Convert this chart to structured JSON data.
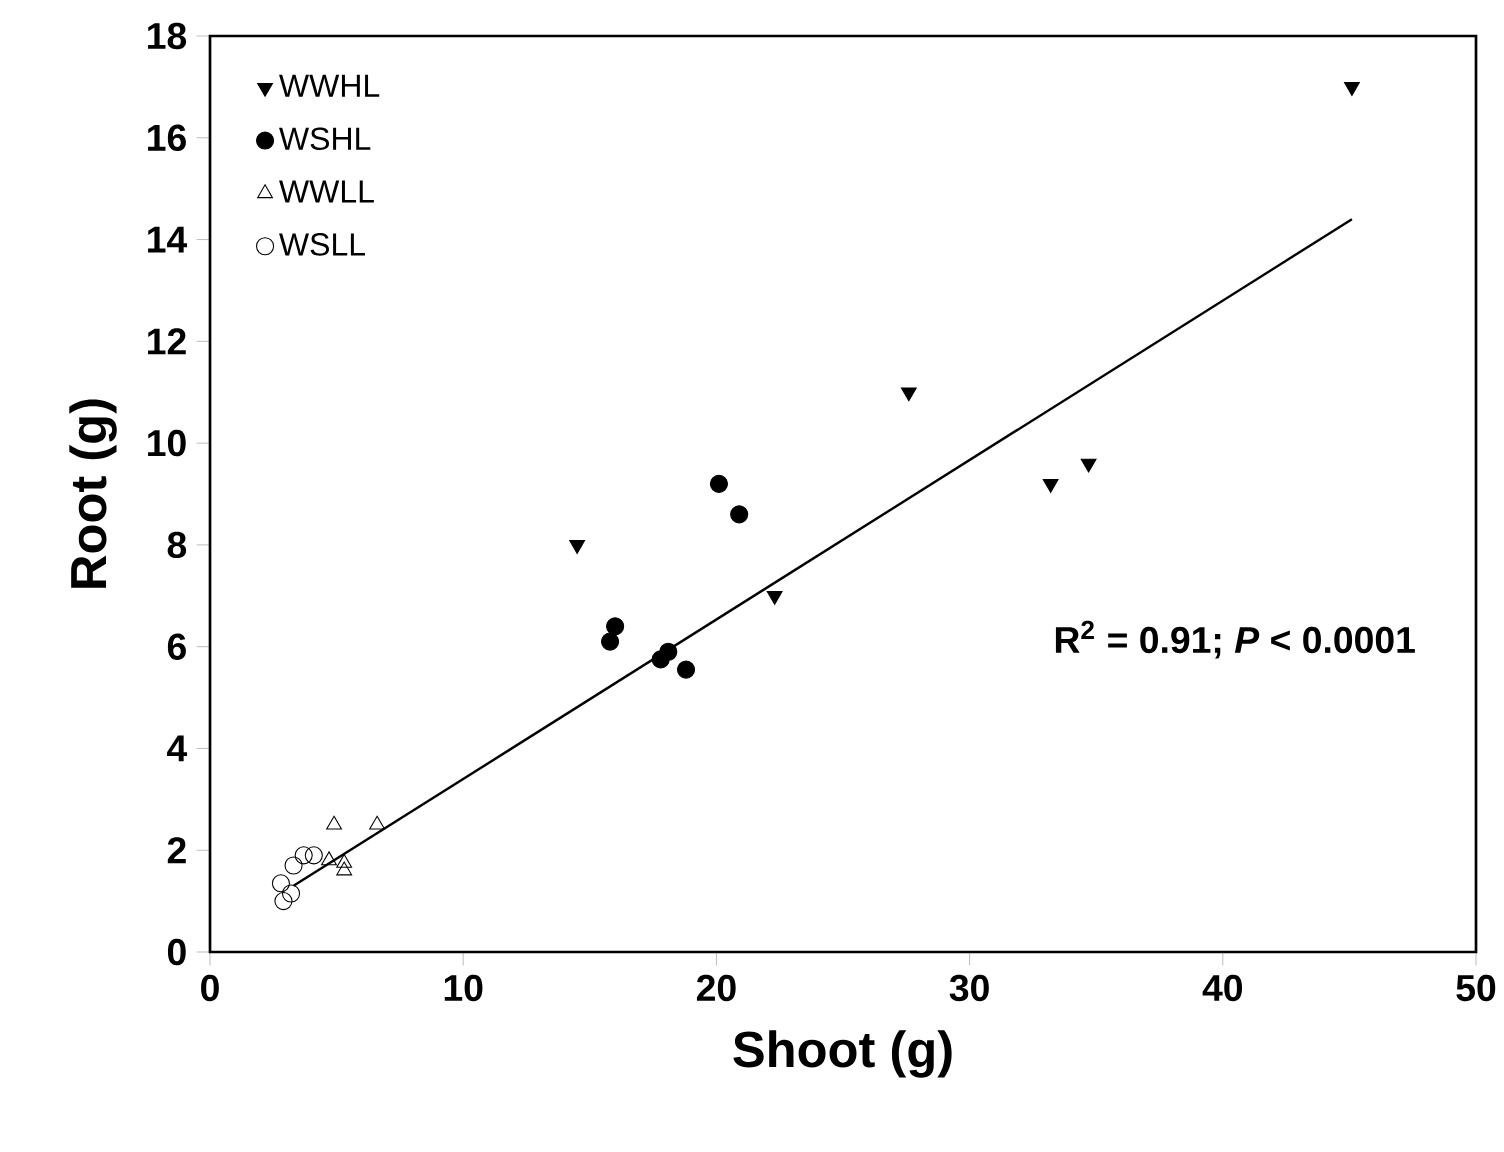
{
  "chart_data": {
    "type": "scatter",
    "xlabel": "Shoot (g)",
    "ylabel": "Root (g)",
    "xlim": [
      0,
      50
    ],
    "ylim": [
      0,
      18
    ],
    "xticks": [
      0,
      10,
      20,
      30,
      40,
      50
    ],
    "yticks": [
      0,
      2,
      4,
      6,
      8,
      10,
      12,
      14,
      16,
      18
    ],
    "grid": false,
    "legend": "top left",
    "annotations": [
      {
        "text": "R$^{2}$ = 0.91; *P* < 0.0001"
      }
    ],
    "series": [
      {
        "name": "WWHL",
        "color": "#000000",
        "marker": "triangle-down",
        "x": [
          14.5,
          22.3,
          27.6,
          33.2,
          34.7,
          45.1
        ],
        "values": [
          8.0,
          7.0,
          11.0,
          9.2,
          9.6,
          17.0
        ]
      },
      {
        "name": "WSHL",
        "color": "#000000",
        "marker": "circle",
        "x": [
          20.1,
          20.9,
          15.8,
          16.0,
          17.8,
          18.1,
          18.8
        ],
        "values": [
          9.2,
          8.6,
          6.1,
          6.4,
          5.75,
          5.9,
          5.55
        ]
      },
      {
        "name": "WWLL",
        "color": "#000000",
        "marker": "triangle-open",
        "x": [
          4.9,
          6.6,
          5.3,
          5.3,
          4.7
        ],
        "values": [
          2.5,
          2.5,
          1.75,
          1.6,
          1.8
        ]
      },
      {
        "name": "WSLL",
        "color": "#000000",
        "marker": "circle-open",
        "x": [
          3.7,
          3.3,
          2.8,
          2.9,
          3.2,
          4.1
        ],
        "values": [
          1.9,
          1.7,
          1.35,
          1.0,
          1.15,
          1.9
        ]
      },
      {
        "type": "line",
        "color": "#000000",
        "x": [
          3.3,
          45.1
        ],
        "values": [
          1.3,
          14.4
        ]
      }
    ]
  }
}
